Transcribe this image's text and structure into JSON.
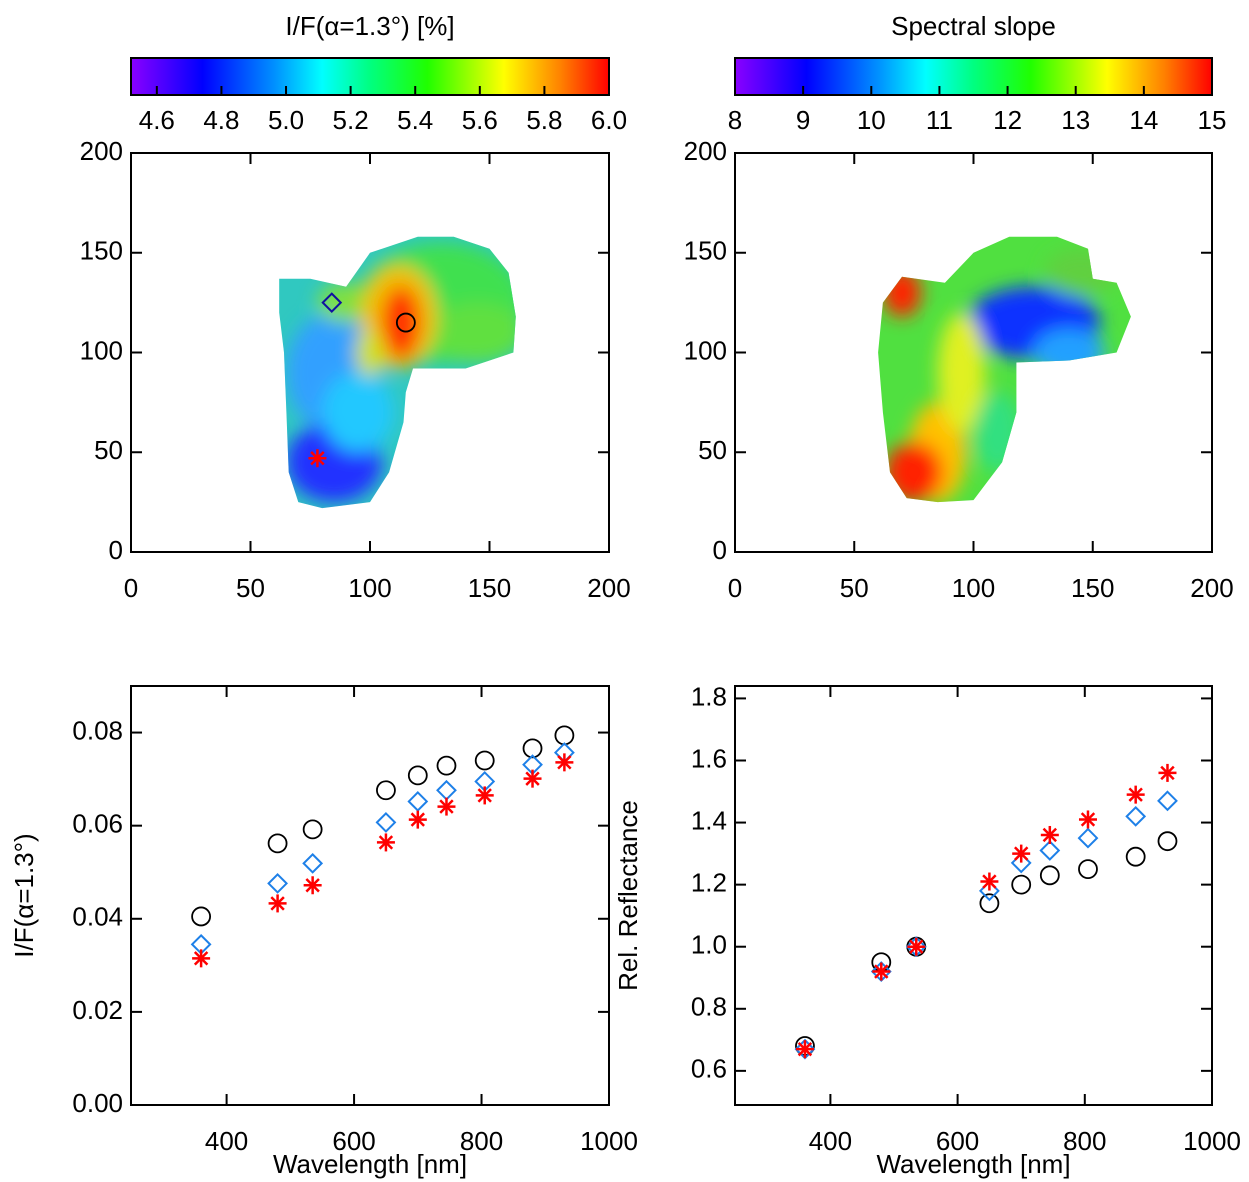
{
  "chart_data": [
    {
      "type": "map",
      "title": "I/F(α=1.3°) [%]",
      "clim": [
        4.52,
        6.0
      ],
      "cticks": [
        4.6,
        4.8,
        {
          "value": 5,
          "label": "5.0"
        },
        5.2,
        5.4,
        5.6,
        5.8,
        {
          "value": 6,
          "label": "6.0"
        }
      ],
      "xlim": [
        0,
        200
      ],
      "xticks": [
        0,
        50,
        100,
        150,
        200
      ],
      "ylim": [
        0,
        200
      ],
      "yticks": [
        0,
        50,
        100,
        150,
        200
      ],
      "series": [
        {
          "marker": "diamond",
          "color": "#1010a0",
          "x": [
            84
          ],
          "y": [
            125
          ]
        },
        {
          "marker": "circle",
          "color": "#000000",
          "x": [
            115
          ],
          "y": [
            115
          ]
        },
        {
          "marker": "asterisk",
          "color": "#ff0000",
          "x": [
            78
          ],
          "y": [
            47
          ]
        }
      ]
    },
    {
      "type": "map",
      "title": "Spectral slope",
      "clim": [
        8,
        15
      ],
      "cticks": [
        8,
        9,
        10,
        11,
        12,
        13,
        14,
        15
      ],
      "xlim": [
        0,
        200
      ],
      "xticks": [
        0,
        50,
        100,
        150,
        200
      ],
      "ylim": [
        0,
        200
      ],
      "yticks": [
        0,
        50,
        100,
        150,
        200
      ],
      "series": []
    },
    {
      "type": "scatter",
      "xlabel": "Wavelength [nm]",
      "ylabel": "I/F(α=1.3°)",
      "xlim": [
        250,
        1000
      ],
      "xticks": [
        400,
        600,
        800,
        1000
      ],
      "ylim": [
        0,
        0.09
      ],
      "yticks": [
        {
          "value": 0,
          "label": "0.00"
        },
        0.02,
        0.04,
        0.06,
        0.08
      ],
      "x": [
        360,
        480,
        535,
        650,
        700,
        745,
        805,
        880,
        930
      ],
      "series": [
        {
          "marker": "circle",
          "color": "#000000",
          "values": [
            0.0405,
            0.0562,
            0.0592,
            0.0676,
            0.0708,
            0.0729,
            0.074,
            0.0766,
            0.0794
          ]
        },
        {
          "marker": "diamond",
          "color": "#1e80e8",
          "values": [
            0.0345,
            0.0476,
            0.0519,
            0.0607,
            0.0652,
            0.0676,
            0.0695,
            0.0731,
            0.0757
          ]
        },
        {
          "marker": "asterisk",
          "color": "#ff0000",
          "values": [
            0.0315,
            0.0433,
            0.0472,
            0.0564,
            0.0613,
            0.0641,
            0.0665,
            0.0701,
            0.0736
          ]
        }
      ]
    },
    {
      "type": "scatter",
      "xlabel": "Wavelength [nm]",
      "ylabel": "Rel. Reflectance",
      "xlim": [
        250,
        1000
      ],
      "xticks": [
        400,
        600,
        800,
        1000
      ],
      "ylim": [
        0.49,
        1.84
      ],
      "yticks": [
        0.6,
        0.8,
        {
          "value": 1,
          "label": "1.0"
        },
        1.2,
        1.4,
        1.6,
        1.8
      ],
      "x": [
        360,
        480,
        535,
        650,
        700,
        745,
        805,
        880,
        930
      ],
      "series": [
        {
          "marker": "circle",
          "color": "#000000",
          "values": [
            0.68,
            0.95,
            1.0,
            1.14,
            1.2,
            1.23,
            1.25,
            1.29,
            1.34
          ]
        },
        {
          "marker": "diamond",
          "color": "#1e80e8",
          "values": [
            0.67,
            0.92,
            1.0,
            1.18,
            1.27,
            1.31,
            1.35,
            1.42,
            1.47
          ]
        },
        {
          "marker": "asterisk",
          "color": "#ff0000",
          "values": [
            0.67,
            0.92,
            1.0,
            1.21,
            1.3,
            1.36,
            1.41,
            1.49,
            1.56
          ]
        }
      ]
    }
  ]
}
